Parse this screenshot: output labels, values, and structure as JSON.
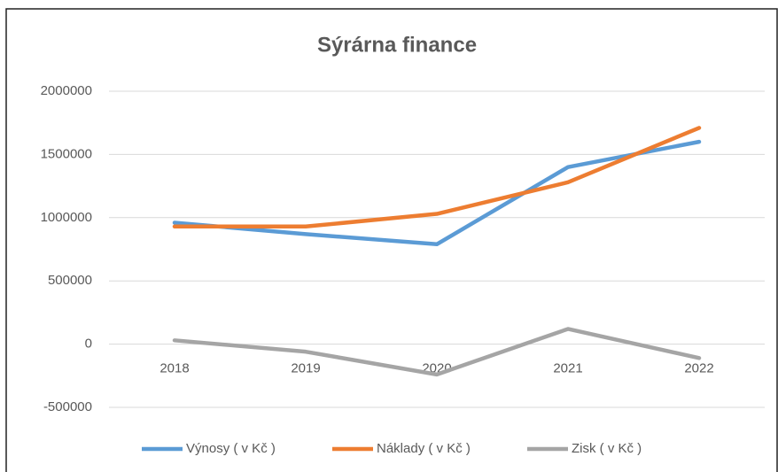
{
  "chart_data": {
    "type": "line",
    "title": "Sýrárna finance",
    "categories": [
      "2018",
      "2019",
      "2020",
      "2021",
      "2022"
    ],
    "series": [
      {
        "name": "Výnosy ( v Kč )",
        "color": "#5b9bd5",
        "values": [
          960000,
          870000,
          790000,
          1400000,
          1600000
        ]
      },
      {
        "name": "Náklady ( v Kč )",
        "color": "#ed7d31",
        "values": [
          930000,
          930000,
          1030000,
          1280000,
          1710000
        ]
      },
      {
        "name": "Zisk ( v Kč )",
        "color": "#a5a5a5",
        "values": [
          30000,
          -60000,
          -240000,
          120000,
          -110000
        ]
      }
    ],
    "ylim": [
      -500000,
      2000000
    ],
    "yticks": [
      -500000,
      0,
      500000,
      1000000,
      1500000,
      2000000
    ],
    "grid": true,
    "legend": "bottom"
  }
}
